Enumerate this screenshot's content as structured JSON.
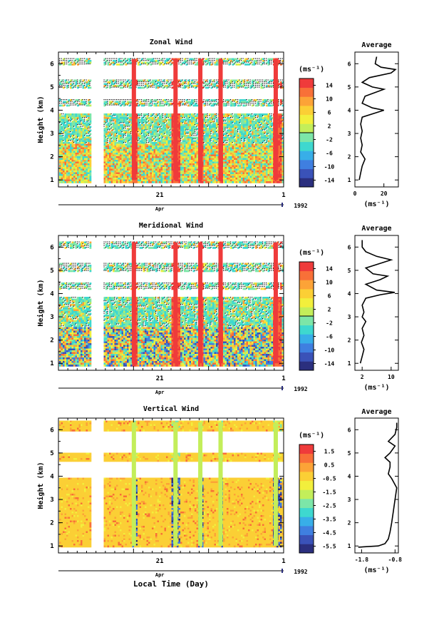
{
  "colors": {
    "scale": [
      "#2b2f7e",
      "#3a52b8",
      "#3f7fe0",
      "#38aee8",
      "#3ed8cf",
      "#7ce6a8",
      "#c3ee5a",
      "#f2ef3c",
      "#fbcf35",
      "#fca337",
      "#f87038",
      "#ef3b3b"
    ],
    "outline": "#000000",
    "background": "#ffffff"
  },
  "chart_data": [
    {
      "type": "heatmap",
      "title": "Zonal Wind",
      "ylabel": "Height (km)",
      "yticks": [
        "1",
        "2",
        "3",
        "4",
        "5",
        "6"
      ],
      "xticks": [
        "21",
        "1"
      ],
      "month_label": "Apr",
      "year_label": "1992",
      "colorbar": {
        "unit": "(ms⁻¹)",
        "ticks": [
          "14",
          "10",
          "6",
          "2",
          "-2",
          "-6",
          "-10",
          "-14"
        ],
        "range": [
          -16,
          16
        ]
      },
      "average": {
        "title": "Average",
        "xticks": [
          "0",
          "20"
        ],
        "xlabel": "(ms⁻¹)",
        "xlim": [
          0,
          30
        ],
        "ylim": [
          0.7,
          6.5
        ],
        "profile": [
          [
            1.0,
            3
          ],
          [
            1.3,
            4
          ],
          [
            1.6,
            5
          ],
          [
            1.9,
            7
          ],
          [
            2.2,
            4
          ],
          [
            2.5,
            5
          ],
          [
            2.8,
            4
          ],
          [
            3.1,
            5
          ],
          [
            3.4,
            4
          ],
          [
            3.7,
            5
          ],
          [
            3.9,
            15
          ],
          [
            4.0,
            20
          ],
          [
            4.1,
            12
          ],
          [
            4.3,
            5
          ],
          [
            4.6,
            7
          ],
          [
            4.9,
            20
          ],
          [
            5.0,
            12
          ],
          [
            5.2,
            5
          ],
          [
            5.4,
            10
          ],
          [
            5.6,
            25
          ],
          [
            5.75,
            28
          ],
          [
            5.85,
            18
          ],
          [
            6.0,
            14
          ],
          [
            6.3,
            15
          ]
        ]
      }
    },
    {
      "type": "heatmap",
      "title": "Meridional Wind",
      "ylabel": "Height (km)",
      "yticks": [
        "1",
        "2",
        "3",
        "4",
        "5",
        "6"
      ],
      "xticks": [
        "21",
        "1"
      ],
      "month_label": "Apr",
      "year_label": "1992",
      "colorbar": {
        "unit": "(ms⁻¹)",
        "ticks": [
          "14",
          "10",
          "6",
          "2",
          "-2",
          "-6",
          "-10",
          "-14"
        ],
        "range": [
          -16,
          16
        ]
      },
      "average": {
        "title": "Average",
        "xticks": [
          "2",
          "10"
        ],
        "xlabel": "(ms⁻¹)",
        "xlim": [
          0,
          12
        ],
        "ylim": [
          0.7,
          6.5
        ],
        "profile": [
          [
            1.0,
            1.5
          ],
          [
            1.3,
            2
          ],
          [
            1.6,
            2.5
          ],
          [
            1.9,
            1.8
          ],
          [
            2.2,
            2.5
          ],
          [
            2.5,
            2
          ],
          [
            2.8,
            3
          ],
          [
            3.0,
            2
          ],
          [
            3.2,
            2.5
          ],
          [
            3.5,
            2
          ],
          [
            3.8,
            3
          ],
          [
            3.95,
            7
          ],
          [
            4.05,
            11
          ],
          [
            4.15,
            6
          ],
          [
            4.4,
            3
          ],
          [
            4.6,
            7
          ],
          [
            4.75,
            9
          ],
          [
            4.85,
            5
          ],
          [
            5.1,
            3
          ],
          [
            5.3,
            7
          ],
          [
            5.45,
            10
          ],
          [
            5.6,
            6
          ],
          [
            5.8,
            3
          ],
          [
            6.0,
            2
          ],
          [
            6.3,
            2
          ]
        ]
      }
    },
    {
      "type": "heatmap",
      "title": "Vertical Wind",
      "ylabel": "Height (km)",
      "xlabel": "Local Time (Day)",
      "yticks": [
        "1",
        "2",
        "3",
        "4",
        "5",
        "6"
      ],
      "xticks": [
        "21",
        "1"
      ],
      "month_label": "Apr",
      "year_label": "1992",
      "colorbar": {
        "unit": "(ms⁻¹)",
        "ticks": [
          "1.5",
          "0.5",
          "-0.5",
          "-1.5",
          "-2.5",
          "-3.5",
          "-4.5",
          "-5.5"
        ],
        "range": [
          -6.0,
          2.0
        ]
      },
      "average": {
        "title": "Average",
        "xticks": [
          "-1.8",
          "-0.8"
        ],
        "xlabel": "(ms⁻¹)",
        "xlim": [
          -2.0,
          -0.7
        ],
        "ylim": [
          0.7,
          6.5
        ],
        "profile": [
          [
            0.95,
            -1.9
          ],
          [
            1.0,
            -1.3
          ],
          [
            1.1,
            -1.1
          ],
          [
            1.3,
            -1.0
          ],
          [
            1.6,
            -0.95
          ],
          [
            2.0,
            -0.9
          ],
          [
            2.5,
            -0.85
          ],
          [
            3.0,
            -0.8
          ],
          [
            3.5,
            -0.75
          ],
          [
            3.9,
            -0.9
          ],
          [
            4.1,
            -1.0
          ],
          [
            4.4,
            -0.95
          ],
          [
            4.6,
            -0.95
          ],
          [
            4.8,
            -1.1
          ],
          [
            5.0,
            -0.95
          ],
          [
            5.3,
            -0.8
          ],
          [
            5.5,
            -1.0
          ],
          [
            5.8,
            -0.8
          ],
          [
            6.1,
            -0.75
          ],
          [
            6.3,
            -0.75
          ]
        ]
      }
    }
  ]
}
